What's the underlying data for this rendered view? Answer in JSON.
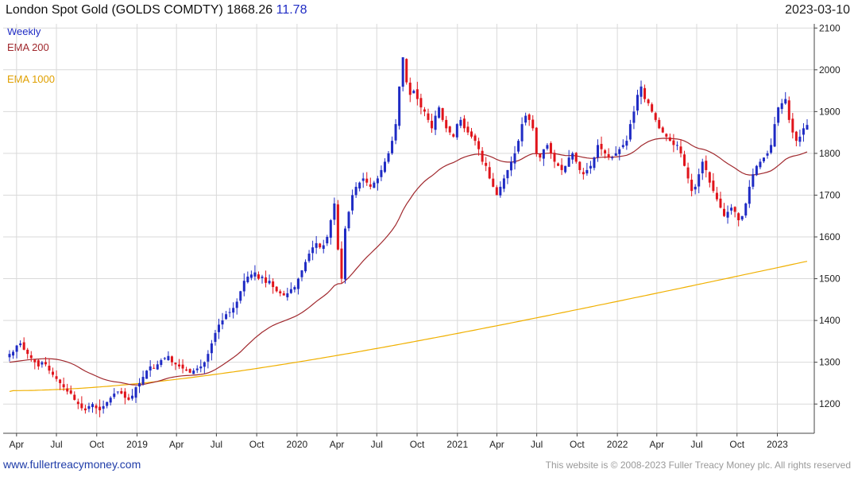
{
  "header": {
    "title": "London Spot Gold (GOLDS COMDTY) 1868.26",
    "change": "11.78",
    "date": "2023-03-10"
  },
  "legend": {
    "weekly": "Weekly",
    "ema200": "EMA 200",
    "ema1000": "EMA 1000"
  },
  "footer": {
    "left": "www.fullertreacymoney.com",
    "right": "This website is © 2008-2023 Fuller Treacy Money plc. All rights reserved"
  },
  "colors": {
    "up": "#1f2bc4",
    "down": "#e0141b",
    "ema200": "#a0282d",
    "ema1000": "#f0b000",
    "grid": "#d9d9d9"
  },
  "chart_data": {
    "type": "candlestick",
    "frequency": "weekly",
    "ylim": [
      1130,
      2110
    ],
    "y_ticks": [
      1200,
      1300,
      1400,
      1500,
      1600,
      1700,
      1800,
      1900,
      2000,
      2100
    ],
    "x_ticks": [
      "Apr",
      "Jul",
      "Oct",
      "2019",
      "Apr",
      "Jul",
      "Oct",
      "2020",
      "Apr",
      "Jul",
      "Oct",
      "2021",
      "Apr",
      "Jul",
      "Oct",
      "2022",
      "Apr",
      "Jul",
      "Oct",
      "2023"
    ],
    "x_tick_dates": [
      "2018-04-01",
      "2018-07-01",
      "2018-10-01",
      "2019-01-01",
      "2019-04-01",
      "2019-07-01",
      "2019-10-01",
      "2020-01-01",
      "2020-04-01",
      "2020-07-01",
      "2020-10-01",
      "2021-01-01",
      "2021-04-01",
      "2021-07-01",
      "2021-10-01",
      "2022-01-01",
      "2022-04-01",
      "2022-07-01",
      "2022-10-01",
      "2023-01-01"
    ],
    "date_range": [
      "2018-03-16",
      "2023-03-10"
    ],
    "price_close": [
      1320,
      1325,
      1340,
      1345,
      1330,
      1320,
      1310,
      1300,
      1290,
      1300,
      1295,
      1280,
      1270,
      1260,
      1250,
      1240,
      1230,
      1225,
      1210,
      1200,
      1190,
      1185,
      1195,
      1200,
      1190,
      1185,
      1195,
      1205,
      1215,
      1225,
      1230,
      1225,
      1215,
      1210,
      1220,
      1240,
      1250,
      1265,
      1280,
      1290,
      1285,
      1295,
      1305,
      1310,
      1315,
      1300,
      1295,
      1290,
      1285,
      1280,
      1275,
      1280,
      1285,
      1290,
      1300,
      1320,
      1345,
      1370,
      1390,
      1400,
      1415,
      1420,
      1430,
      1445,
      1470,
      1495,
      1505,
      1510,
      1515,
      1500,
      1505,
      1490,
      1495,
      1480,
      1470,
      1465,
      1460,
      1465,
      1475,
      1480,
      1500,
      1520,
      1540,
      1560,
      1575,
      1585,
      1575,
      1580,
      1600,
      1640,
      1680,
      1570,
      1500,
      1620,
      1660,
      1700,
      1720,
      1730,
      1740,
      1730,
      1720,
      1730,
      1740,
      1760,
      1780,
      1800,
      1830,
      1870,
      1960,
      2030,
      1970,
      1940,
      1950,
      1930,
      1910,
      1900,
      1880,
      1860,
      1890,
      1910,
      1880,
      1860,
      1850,
      1840,
      1870,
      1880,
      1860,
      1850,
      1840,
      1830,
      1810,
      1780,
      1770,
      1740,
      1720,
      1700,
      1720,
      1740,
      1760,
      1780,
      1800,
      1830,
      1870,
      1890,
      1880,
      1860,
      1800,
      1790,
      1810,
      1820,
      1800,
      1780,
      1770,
      1760,
      1770,
      1790,
      1800,
      1780,
      1760,
      1750,
      1760,
      1770,
      1790,
      1820,
      1810,
      1800,
      1790,
      1790,
      1800,
      1810,
      1820,
      1830,
      1870,
      1900,
      1940,
      1960,
      1930,
      1920,
      1900,
      1880,
      1860,
      1850,
      1840,
      1830,
      1820,
      1820,
      1800,
      1770,
      1740,
      1710,
      1720,
      1750,
      1780,
      1760,
      1730,
      1710,
      1690,
      1670,
      1650,
      1660,
      1670,
      1660,
      1640,
      1650,
      1680,
      1720,
      1750,
      1770,
      1780,
      1790,
      1800,
      1820,
      1870,
      1910,
      1920,
      1930,
      1880,
      1850,
      1830,
      1840,
      1860,
      1868
    ]
  }
}
